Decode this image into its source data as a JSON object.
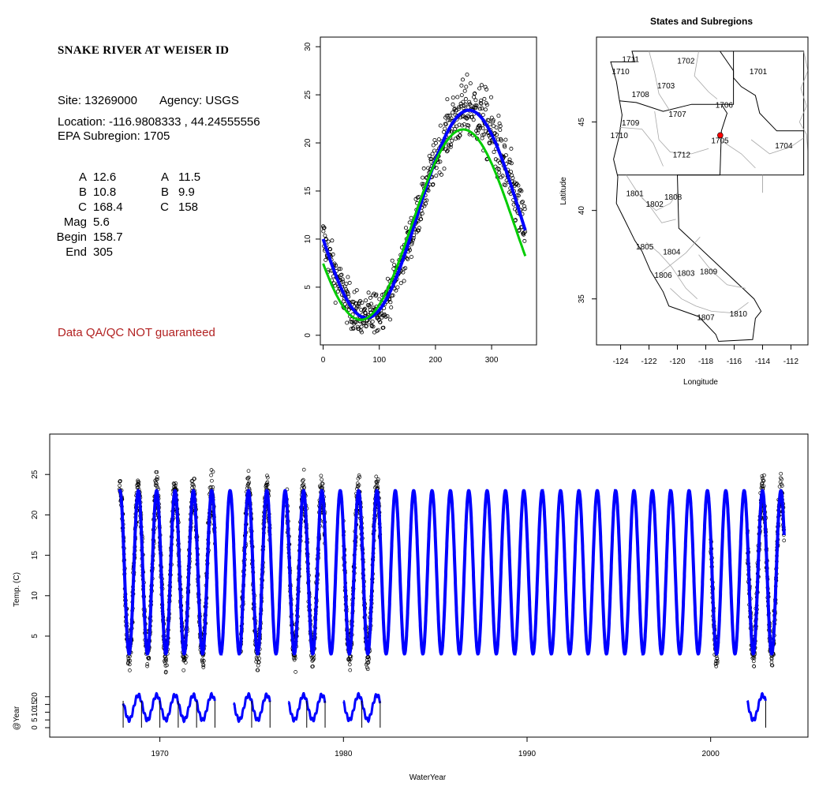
{
  "site_panel": {
    "title": "SNAKE RIVER AT WEISER ID",
    "site_label": "Site: 13269000",
    "agency_label": "Agency: USGS",
    "location_label": "Location: -116.9808333 , 44.24555556",
    "subregion_label": "EPA Subregion: 1705",
    "params_left": [
      {
        "label": "A",
        "value": "12.6"
      },
      {
        "label": "B",
        "value": "10.8"
      },
      {
        "label": "C",
        "value": "168.4"
      },
      {
        "label": "Mag",
        "value": "5.6"
      },
      {
        "label": "Begin",
        "value": "158.7"
      },
      {
        "label": "End",
        "value": "305"
      }
    ],
    "params_right": [
      {
        "label": "A",
        "value": "11.5"
      },
      {
        "label": "B",
        "value": "9.9"
      },
      {
        "label": "C",
        "value": "158"
      }
    ],
    "disclaimer": "Data QA/QC NOT guaranteed",
    "disclaimer_color": "#b22222"
  },
  "chart_data": [
    {
      "id": "seasonal",
      "type": "scatter",
      "xlim": [
        -5,
        380
      ],
      "ylim": [
        -1,
        31
      ],
      "x_ticks": [
        0,
        100,
        200,
        300
      ],
      "y_ticks": [
        0,
        5,
        10,
        15,
        20,
        25,
        30
      ],
      "xlabel": "",
      "ylabel": "",
      "series": [
        {
          "kind": "points",
          "color": "#000000",
          "description_model": {
            "A": 12.6,
            "B": 10.8,
            "C": 168.4,
            "mag": 5.6,
            "begin": 158.7,
            "end": 305
          }
        },
        {
          "kind": "curve",
          "color": "#0000ff",
          "A": 12.6,
          "B": 10.8,
          "C": 168.4
        },
        {
          "kind": "curve",
          "color": "#00cc00",
          "A": 11.5,
          "B": 9.9,
          "C": 158
        }
      ]
    },
    {
      "id": "map",
      "type": "map",
      "title": "States and Subregions",
      "xlabel": "Longitude",
      "ylabel": "Latitude",
      "xlim": [
        -125.7,
        -110.8
      ],
      "ylim": [
        32.4,
        49.8
      ],
      "x_ticks": [
        -124,
        -122,
        -120,
        -118,
        -116,
        -114,
        -112
      ],
      "y_ticks": [
        35,
        40,
        45
      ],
      "site": {
        "lon": -116.98,
        "lat": 44.25,
        "color": "#ff0000"
      },
      "region_labels": [
        {
          "text": "1711",
          "lon": -123.3,
          "lat": 48.4
        },
        {
          "text": "1710",
          "lon": -124.0,
          "lat": 47.7
        },
        {
          "text": "1702",
          "lon": -119.4,
          "lat": 48.3
        },
        {
          "text": "1701",
          "lon": -114.3,
          "lat": 47.7
        },
        {
          "text": "1708",
          "lon": -122.6,
          "lat": 46.4
        },
        {
          "text": "1703",
          "lon": -120.8,
          "lat": 46.9
        },
        {
          "text": "1706",
          "lon": -116.7,
          "lat": 45.8
        },
        {
          "text": "1707",
          "lon": -120.0,
          "lat": 45.3
        },
        {
          "text": "1709",
          "lon": -123.3,
          "lat": 44.8
        },
        {
          "text": "1710",
          "lon": -124.1,
          "lat": 44.1
        },
        {
          "text": "1705",
          "lon": -117.0,
          "lat": 43.8
        },
        {
          "text": "1704",
          "lon": -112.5,
          "lat": 43.5
        },
        {
          "text": "1712",
          "lon": -119.7,
          "lat": 43.0
        },
        {
          "text": "1801",
          "lon": -123.0,
          "lat": 40.8
        },
        {
          "text": "1808",
          "lon": -120.3,
          "lat": 40.6
        },
        {
          "text": "1802",
          "lon": -121.6,
          "lat": 40.2
        },
        {
          "text": "1805",
          "lon": -122.3,
          "lat": 37.8
        },
        {
          "text": "1804",
          "lon": -120.4,
          "lat": 37.5
        },
        {
          "text": "1806",
          "lon": -121.0,
          "lat": 36.2
        },
        {
          "text": "1803",
          "lon": -119.4,
          "lat": 36.3
        },
        {
          "text": "1809",
          "lon": -117.8,
          "lat": 36.4
        },
        {
          "text": "1807",
          "lon": -118.0,
          "lat": 33.8
        },
        {
          "text": "1810",
          "lon": -115.7,
          "lat": 34.0
        }
      ]
    },
    {
      "id": "timeseries",
      "type": "line",
      "xlabel": "WaterYear",
      "ylabel": "Temp. (C)",
      "ylabel2": "@Year",
      "xlim": [
        1964.0,
        2005.3
      ],
      "ylim": [
        -7.5,
        30.0
      ],
      "x_ticks": [
        1970,
        1980,
        1990,
        2000
      ],
      "y_ticks": [
        5,
        10,
        15,
        20,
        25
      ],
      "y2_ticks": [
        0,
        5,
        10,
        15,
        20
      ],
      "model": {
        "mean": 12.9,
        "amplitude": 10.1,
        "peak_day": 300,
        "start": 1967.8,
        "end": 2004.0,
        "color": "#0000ff"
      },
      "observed_intervals": [
        [
          1967.8,
          1973.0
        ],
        [
          1974.4,
          1976.0
        ],
        [
          1976.9,
          1979.0
        ],
        [
          1980.0,
          1982.0
        ],
        [
          2000.0,
          2000.4
        ],
        [
          2002.0,
          2004.0
        ]
      ],
      "year_curves": [
        [
          1968,
          1973
        ],
        [
          1974,
          1976
        ],
        [
          1977,
          1979
        ],
        [
          1980,
          1982
        ],
        [
          2002,
          2003
        ]
      ],
      "year_marks": [
        1968,
        1969,
        1970,
        1971,
        1972,
        1973,
        1975,
        1976,
        1978,
        1979,
        1981,
        1982,
        2003
      ]
    }
  ]
}
